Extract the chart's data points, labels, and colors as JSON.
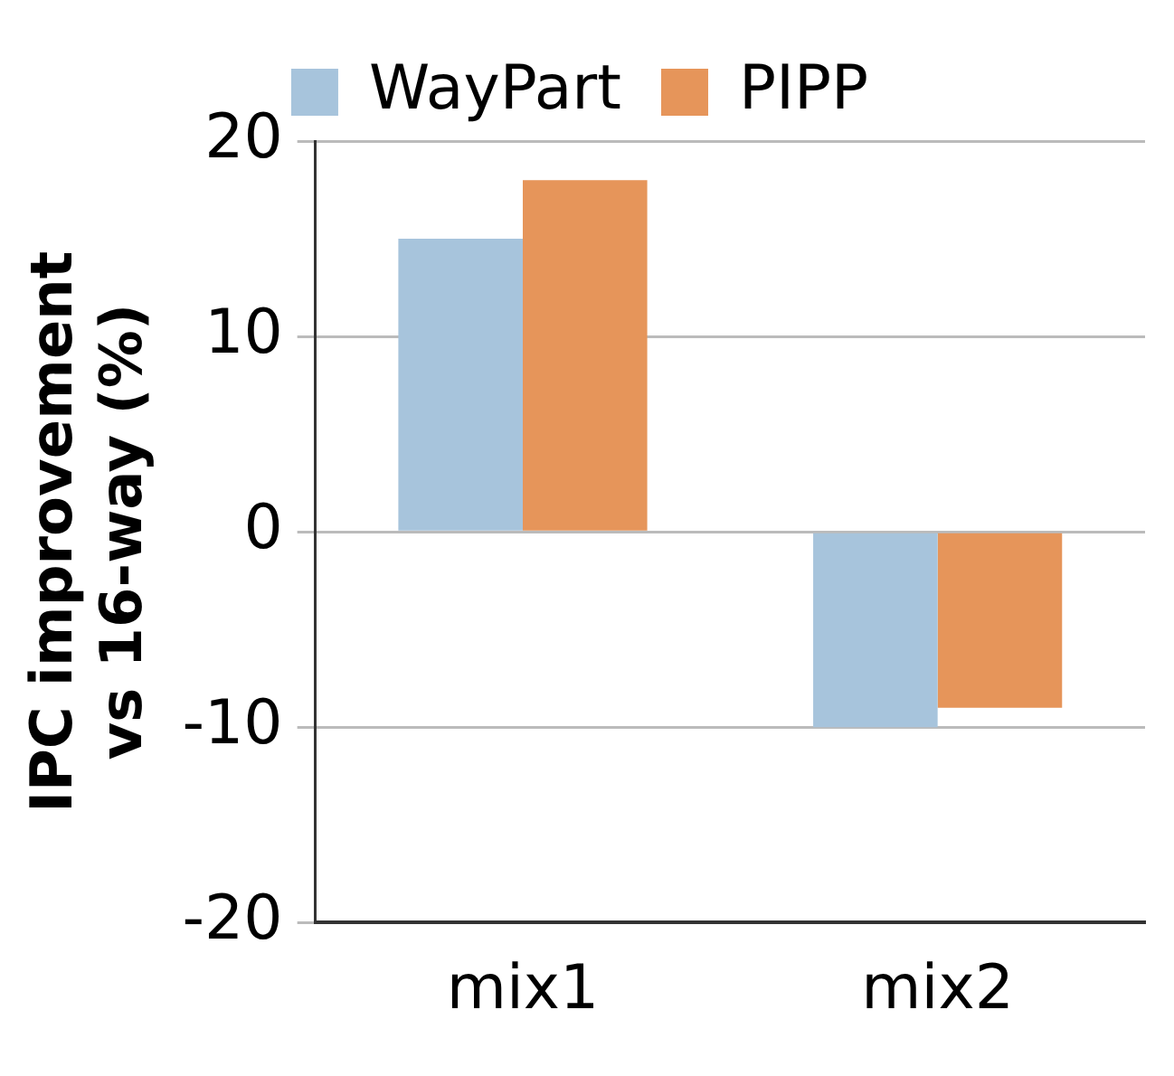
{
  "chart_data": {
    "type": "bar",
    "ylabel": "IPC improvement vs 16-way (%)",
    "categories": [
      "mix1",
      "mix2"
    ],
    "series": [
      {
        "name": "WayPart",
        "color": "#a7c4dc",
        "values": [
          15,
          -10
        ]
      },
      {
        "name": "PIPP",
        "color": "#e6955a",
        "values": [
          18,
          -9
        ]
      }
    ],
    "ylim": [
      -20,
      20
    ],
    "yticks": [
      -20,
      -10,
      0,
      10,
      20
    ],
    "grid": "y",
    "legend": "top"
  }
}
